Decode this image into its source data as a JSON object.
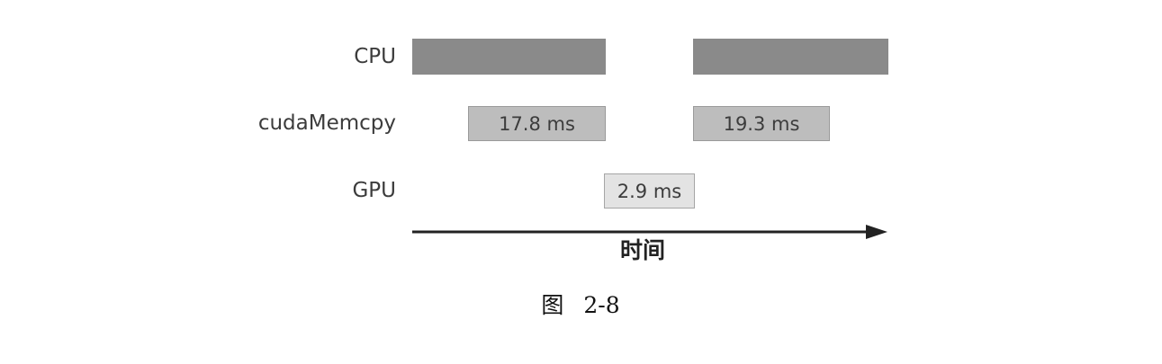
{
  "lanes": {
    "cpu": "CPU",
    "memcpy": "cudaMemcpy",
    "gpu": "GPU"
  },
  "blocks": {
    "memcpy_1": "17.8 ms",
    "memcpy_2": "19.3 ms",
    "gpu_1": "2.9 ms"
  },
  "axis": {
    "label": "时间"
  },
  "caption": {
    "prefix": "图",
    "number": "2-8"
  },
  "colors": {
    "cpu_block": "#8a8a8a",
    "memcpy_block": "#bdbdbd",
    "gpu_block": "#e3e3e3",
    "arrow": "#222222"
  }
}
